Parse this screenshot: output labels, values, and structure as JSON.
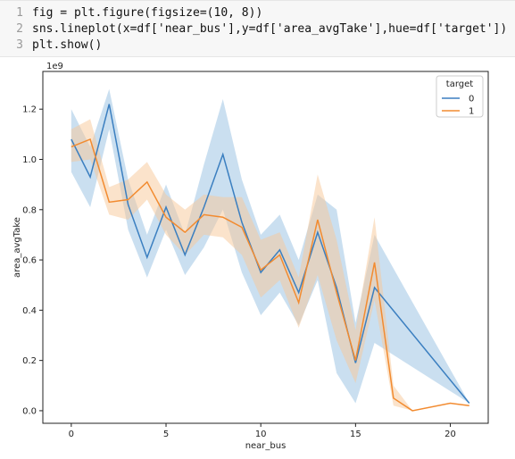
{
  "code": {
    "lines": [
      {
        "num": "1",
        "text": "fig = plt.figure(figsize=(10, 8))"
      },
      {
        "num": "2",
        "text": "sns.lineplot(x=df['near_bus'],y=df['area_avgTake'],hue=df['target'])"
      },
      {
        "num": "3",
        "text": "plt.show()"
      }
    ]
  },
  "chart_data": {
    "type": "line",
    "xlabel": "near_bus",
    "ylabel": "area_avgTake",
    "offset_label": "1e9",
    "xlim": [
      -1.5,
      22
    ],
    "ylim": [
      -0.05,
      1.35
    ],
    "xticks": [
      0,
      5,
      10,
      15,
      20
    ],
    "yticks": [
      0.0,
      0.2,
      0.4,
      0.6,
      0.8,
      1.0,
      1.2
    ],
    "legend": {
      "title": "target",
      "placement": "top-right"
    },
    "series": [
      {
        "name": "0",
        "color": "#3b7fc0",
        "band_color": "#9ec4e4",
        "x": [
          0,
          1,
          2,
          3,
          4,
          5,
          6,
          7,
          8,
          9,
          10,
          11,
          12,
          13,
          14,
          15,
          16,
          21
        ],
        "y": [
          1.08,
          0.93,
          1.22,
          0.82,
          0.61,
          0.81,
          0.62,
          0.81,
          1.02,
          0.75,
          0.55,
          0.64,
          0.47,
          0.71,
          0.49,
          0.19,
          0.49,
          0.03
        ],
        "lower": [
          0.95,
          0.81,
          1.12,
          0.72,
          0.53,
          0.72,
          0.54,
          0.65,
          0.8,
          0.55,
          0.38,
          0.47,
          0.34,
          0.52,
          0.15,
          0.03,
          0.27,
          0.03
        ],
        "upper": [
          1.2,
          1.05,
          1.28,
          0.92,
          0.7,
          0.9,
          0.7,
          0.98,
          1.24,
          0.92,
          0.7,
          0.78,
          0.6,
          0.86,
          0.8,
          0.35,
          0.7,
          0.03
        ]
      },
      {
        "name": "1",
        "color": "#f28b30",
        "band_color": "#f8c898",
        "x": [
          0,
          1,
          2,
          3,
          4,
          5,
          6,
          7,
          8,
          9,
          10,
          11,
          12,
          13,
          14,
          15,
          16,
          17,
          18,
          20,
          21
        ],
        "y": [
          1.05,
          1.08,
          0.83,
          0.84,
          0.91,
          0.77,
          0.71,
          0.78,
          0.77,
          0.73,
          0.56,
          0.62,
          0.43,
          0.76,
          0.47,
          0.2,
          0.59,
          0.05,
          0.0,
          0.03,
          0.02
        ],
        "lower": [
          0.99,
          1.0,
          0.78,
          0.76,
          0.84,
          0.7,
          0.62,
          0.7,
          0.69,
          0.62,
          0.45,
          0.52,
          0.33,
          0.54,
          0.28,
          0.11,
          0.44,
          0.02,
          0.0,
          0.03,
          0.02
        ],
        "upper": [
          1.12,
          1.16,
          0.89,
          0.92,
          0.99,
          0.86,
          0.8,
          0.86,
          0.85,
          0.85,
          0.68,
          0.71,
          0.53,
          0.94,
          0.68,
          0.32,
          0.77,
          0.1,
          0.0,
          0.03,
          0.02
        ]
      }
    ]
  }
}
